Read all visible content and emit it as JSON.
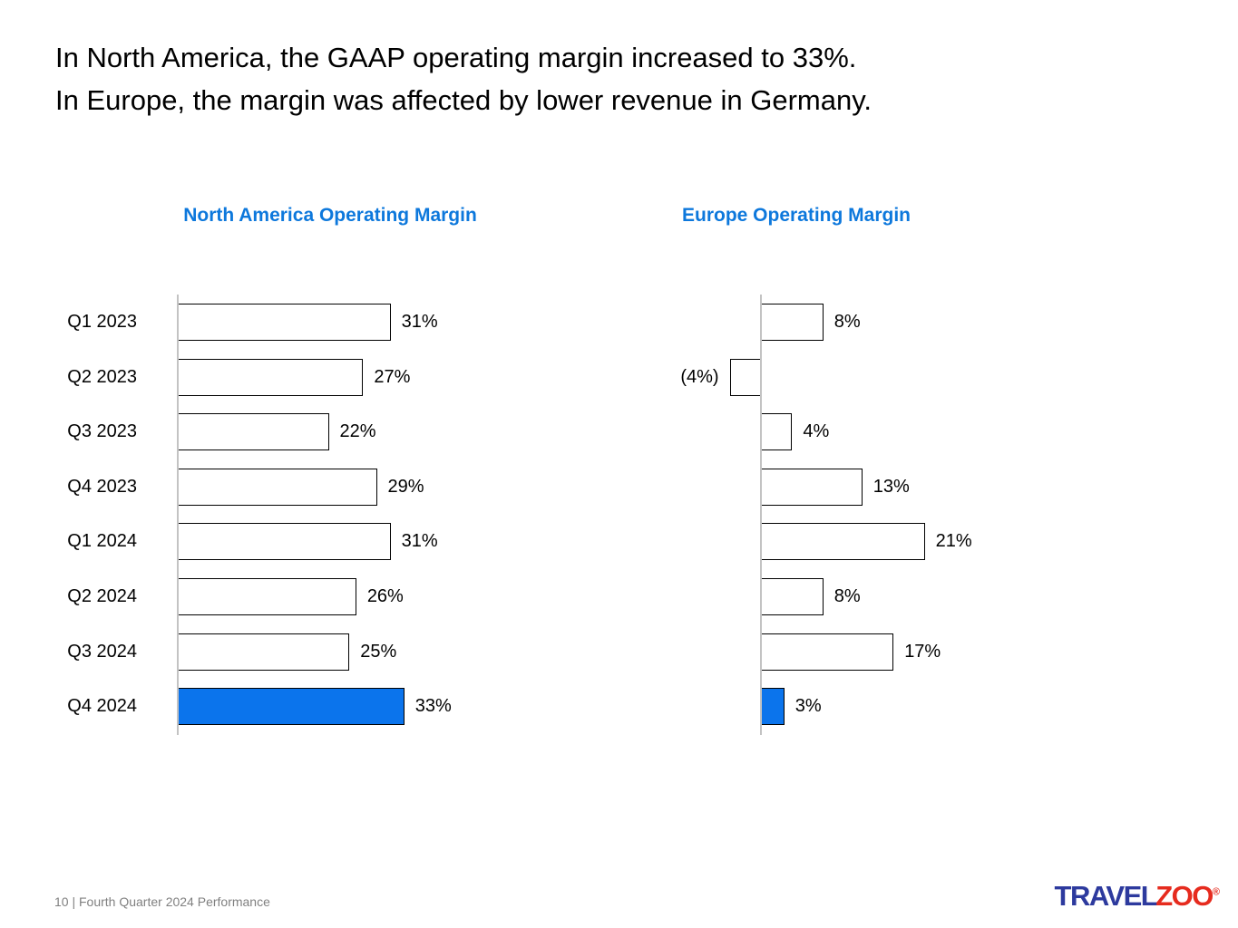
{
  "slide": {
    "title_line1": "In North America, the GAAP operating margin increased to 33%.",
    "title_line2": "In Europe, the margin was affected by lower revenue in Germany.",
    "footer": "10 | Fourth Quarter 2024 Performance",
    "logo": {
      "travel": "TRAVEL",
      "zoo": "ZOO",
      "trademark": "®"
    }
  },
  "colors": {
    "highlight_blue": "#0b74ec",
    "chart_title_blue": "#0d78dc",
    "bar_fill_default": "#ffffff",
    "bar_border": "#000000",
    "axis_line_gray": "#c3c3c3",
    "footer_gray": "#808080",
    "logo_blue": "#2d3a9e",
    "logo_red": "#e62b1e"
  },
  "chart_data": [
    {
      "type": "bar",
      "orientation": "horizontal",
      "title": "North America Operating Margin",
      "categories": [
        "Q1 2023",
        "Q2 2023",
        "Q3 2023",
        "Q4 2023",
        "Q1 2024",
        "Q2 2024",
        "Q3 2024",
        "Q4 2024"
      ],
      "values": [
        31,
        27,
        22,
        29,
        31,
        26,
        25,
        33
      ],
      "labels": [
        "31%",
        "27%",
        "22%",
        "29%",
        "31%",
        "26%",
        "25%",
        "33%"
      ],
      "highlight_index": 7,
      "baseline": 0,
      "value_axis_visible": false,
      "gridlines": false,
      "legend": "none"
    },
    {
      "type": "bar",
      "orientation": "horizontal",
      "title": "Europe Operating Margin",
      "categories": [
        "Q1 2023",
        "Q2 2023",
        "Q3 2023",
        "Q4 2023",
        "Q1 2024",
        "Q2 2024",
        "Q3 2024",
        "Q4 2024"
      ],
      "values": [
        8,
        -4,
        4,
        13,
        21,
        8,
        17,
        3
      ],
      "labels": [
        "8%",
        "(4%)",
        "4%",
        "13%",
        "21%",
        "8%",
        "17%",
        "3%"
      ],
      "highlight_index": 7,
      "baseline": 0,
      "value_axis_visible": false,
      "gridlines": false,
      "legend": "none"
    }
  ]
}
